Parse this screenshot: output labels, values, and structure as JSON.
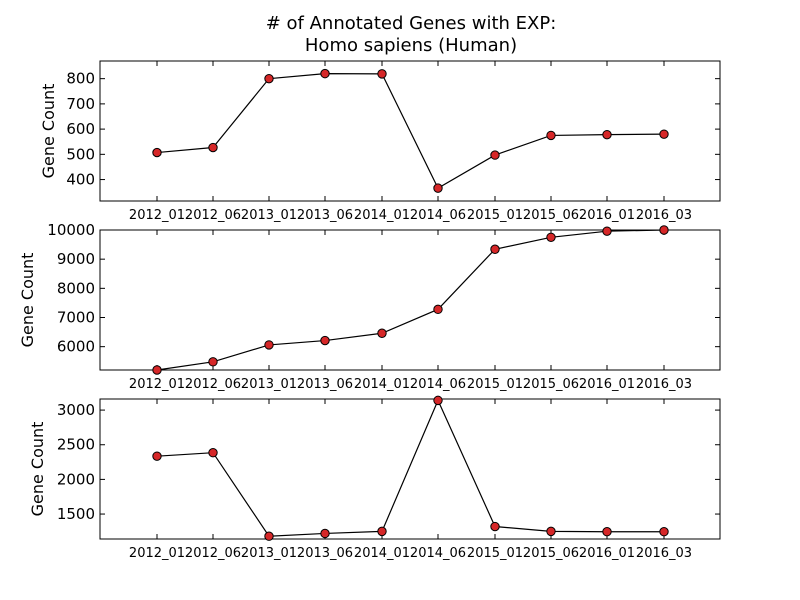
{
  "figure": {
    "title_line1": "# of Annotated Genes with EXP:",
    "title_line2": "Homo sapiens (Human)"
  },
  "colors": {
    "marker_fill": "#d62728",
    "marker_edge": "#000000",
    "line": "#000000"
  },
  "chart_data": [
    {
      "type": "line",
      "categories": [
        "2012_01",
        "2012_06",
        "2013_01",
        "2013_06",
        "2014_01",
        "2014_06",
        "2015_01",
        "2015_06",
        "2016_01",
        "2016_03"
      ],
      "values": [
        507,
        527,
        800,
        820,
        819,
        366,
        497,
        575,
        578,
        580
      ],
      "xlabel": "",
      "ylabel": "Gene Count",
      "ylim": [
        315,
        870
      ],
      "yticks": [
        400,
        500,
        600,
        700,
        800
      ],
      "grid": false
    },
    {
      "type": "line",
      "categories": [
        "2012_01",
        "2012_06",
        "2013_01",
        "2013_06",
        "2014_01",
        "2014_06",
        "2015_01",
        "2015_06",
        "2016_01",
        "2016_03"
      ],
      "values": [
        5200,
        5480,
        6060,
        6210,
        6460,
        7280,
        9340,
        9750,
        9960,
        10000
      ],
      "xlabel": "",
      "ylabel": "Gene Count",
      "ylim": [
        5200,
        10000
      ],
      "yticks": [
        6000,
        7000,
        8000,
        9000,
        10000
      ],
      "grid": false
    },
    {
      "type": "line",
      "categories": [
        "2012_01",
        "2012_06",
        "2013_01",
        "2013_06",
        "2014_01",
        "2014_06",
        "2015_01",
        "2015_06",
        "2016_01",
        "2016_03"
      ],
      "values": [
        2335,
        2385,
        1180,
        1220,
        1250,
        3140,
        1320,
        1250,
        1245,
        1245
      ],
      "xlabel": "",
      "ylabel": "Gene Count",
      "ylim": [
        1140,
        3160
      ],
      "yticks": [
        1500,
        2000,
        2500,
        3000
      ],
      "grid": false
    }
  ]
}
